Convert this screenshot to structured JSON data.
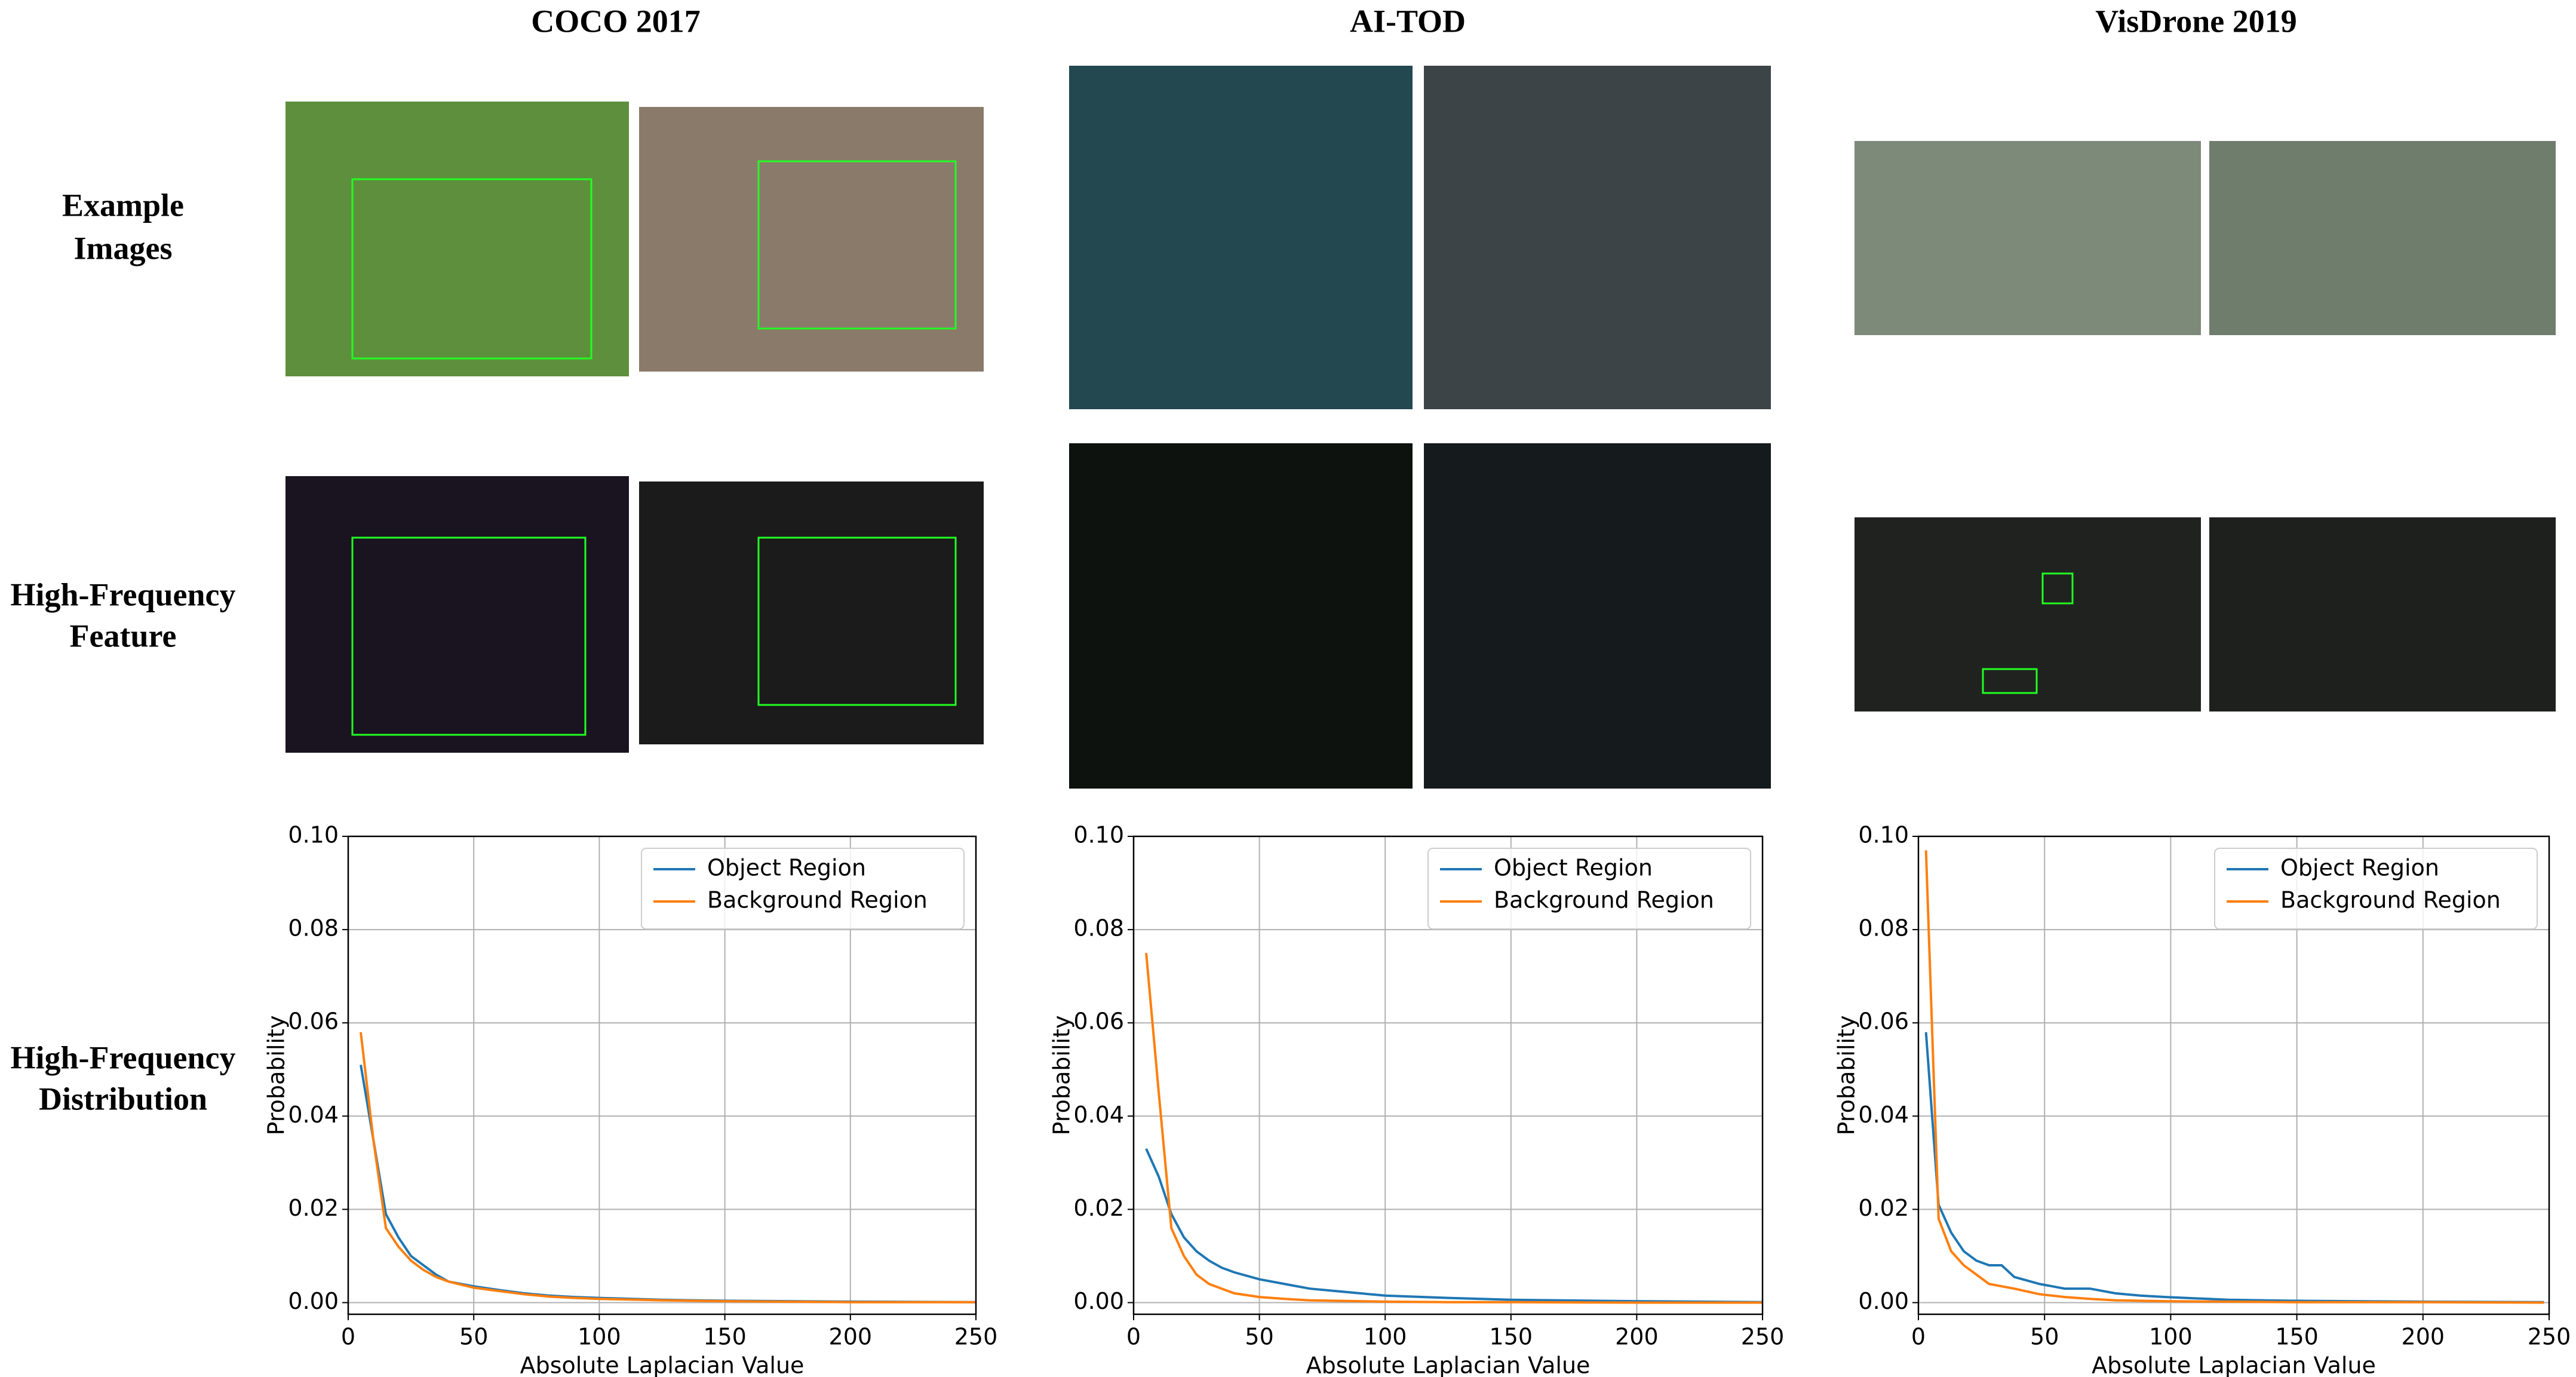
{
  "column_titles": [
    "COCO 2017",
    "AI-TOD",
    "VisDrone 2019"
  ],
  "row_labels": [
    [
      "Example",
      "Images"
    ],
    [
      "High-Frequency",
      "Feature"
    ],
    [
      "High-Frequency",
      "Distribution"
    ]
  ],
  "chart_data": [
    {
      "type": "line",
      "xlabel": "Absolute Laplacian Value",
      "ylabel": "Probability",
      "x": [
        5,
        10,
        15,
        20,
        25,
        30,
        35,
        40,
        50,
        60,
        70,
        80,
        90,
        100,
        125,
        150,
        200,
        250
      ],
      "series": [
        {
          "name": "Object Region",
          "color": "#1f77b4",
          "values": [
            0.051,
            0.035,
            0.019,
            0.014,
            0.01,
            0.008,
            0.006,
            0.0045,
            0.0035,
            0.0027,
            0.002,
            0.0015,
            0.0012,
            0.001,
            0.0006,
            0.0004,
            0.0002,
            0.0001
          ]
        },
        {
          "name": "Background Region",
          "color": "#ff7f0e",
          "values": [
            0.058,
            0.035,
            0.016,
            0.012,
            0.009,
            0.007,
            0.0055,
            0.0045,
            0.0032,
            0.0025,
            0.0018,
            0.0013,
            0.001,
            0.0008,
            0.0005,
            0.0003,
            0.0001,
            0.0001
          ]
        }
      ],
      "xlim": [
        0,
        250
      ],
      "ylim": [
        -0.0025,
        0.1
      ],
      "xticks": [
        0,
        50,
        100,
        150,
        200,
        250
      ],
      "yticks": [
        {
          "value": 0,
          "label": "0.00"
        },
        0.02,
        0.04,
        0.06,
        0.08,
        {
          "value": 0.1,
          "label": "0.10"
        }
      ],
      "grid": true,
      "legend": "upper right"
    },
    {
      "type": "line",
      "xlabel": "Absolute Laplacian Value",
      "ylabel": "Probability",
      "x": [
        5,
        10,
        15,
        20,
        25,
        30,
        35,
        40,
        50,
        60,
        70,
        80,
        90,
        100,
        125,
        150,
        200,
        250
      ],
      "series": [
        {
          "name": "Object Region",
          "color": "#1f77b4",
          "values": [
            0.033,
            0.027,
            0.019,
            0.014,
            0.011,
            0.009,
            0.0075,
            0.0065,
            0.005,
            0.004,
            0.003,
            0.0025,
            0.002,
            0.0015,
            0.001,
            0.0006,
            0.0003,
            0.0001
          ]
        },
        {
          "name": "Background Region",
          "color": "#ff7f0e",
          "values": [
            0.075,
            0.045,
            0.016,
            0.01,
            0.006,
            0.004,
            0.003,
            0.002,
            0.0012,
            0.0008,
            0.0005,
            0.0004,
            0.0003,
            0.0002,
            0.0001,
            0.0001,
            0,
            0
          ]
        }
      ],
      "xlim": [
        0,
        250
      ],
      "ylim": [
        -0.0025,
        0.1
      ],
      "xticks": [
        0,
        50,
        100,
        150,
        200,
        250
      ],
      "yticks": [
        {
          "value": 0,
          "label": "0.00"
        },
        0.02,
        0.04,
        0.06,
        0.08,
        {
          "value": 0.1,
          "label": "0.10"
        }
      ],
      "grid": true,
      "legend": "upper right"
    },
    {
      "type": "line",
      "xlabel": "Absolute Laplacian Value",
      "ylabel": "Probability",
      "x": [
        3,
        8,
        13,
        18,
        23,
        28,
        33,
        38,
        48,
        58,
        68,
        78,
        88,
        98,
        123,
        148,
        198,
        248
      ],
      "series": [
        {
          "name": "Object Region",
          "color": "#1f77b4",
          "values": [
            0.058,
            0.021,
            0.015,
            0.011,
            0.009,
            0.008,
            0.008,
            0.0055,
            0.004,
            0.003,
            0.003,
            0.002,
            0.0015,
            0.0012,
            0.0006,
            0.0004,
            0.0002,
            0.0001
          ]
        },
        {
          "name": "Background Region",
          "color": "#ff7f0e",
          "values": [
            0.097,
            0.018,
            0.011,
            0.008,
            0.006,
            0.004,
            0.0035,
            0.003,
            0.0018,
            0.0012,
            0.0008,
            0.0005,
            0.0004,
            0.0003,
            0.0002,
            0.0001,
            0.0001,
            0
          ]
        }
      ],
      "xlim": [
        0,
        250
      ],
      "ylim": [
        -0.0025,
        0.1
      ],
      "xticks": [
        0,
        50,
        100,
        150,
        200,
        250
      ],
      "yticks": [
        {
          "value": 0,
          "label": "0.00"
        },
        0.02,
        0.04,
        0.06,
        0.08,
        {
          "value": 0.1,
          "label": "0.10"
        }
      ],
      "grid": true,
      "legend": "upper right"
    }
  ]
}
